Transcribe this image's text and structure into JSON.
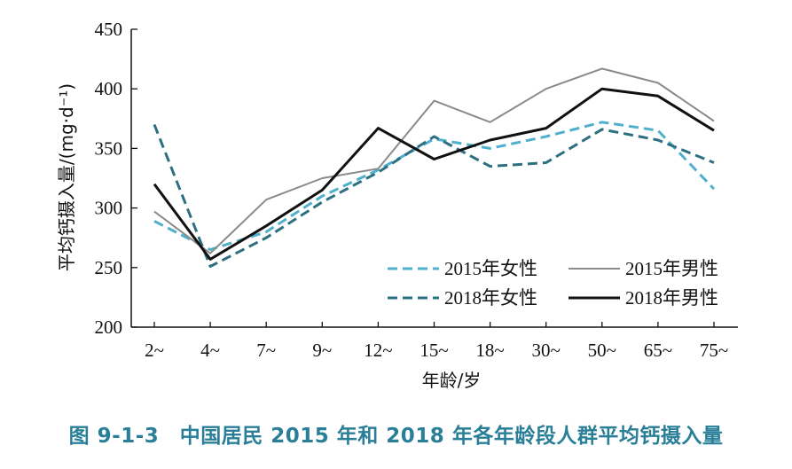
{
  "caption": "图 9-1-3　中国居民 2015 年和 2018 年各年龄段人群平均钙摄入量",
  "chart_data": {
    "type": "line",
    "title": "",
    "xlabel": "年龄/岁",
    "ylabel": "平均钙摄入量/(mg·d⁻¹)",
    "categories": [
      "2~",
      "4~",
      "7~",
      "9~",
      "12~",
      "15~",
      "18~",
      "30~",
      "50~",
      "65~",
      "75~"
    ],
    "ylim": [
      200,
      450
    ],
    "yticks": [
      200,
      250,
      300,
      350,
      400,
      450
    ],
    "grid": false,
    "legend_position": "bottom-right",
    "series": [
      {
        "name": "2015年女性",
        "color": "#4fb0cc",
        "dash": "dashed",
        "values": [
          289,
          265,
          280,
          310,
          332,
          358,
          350,
          360,
          372,
          365,
          316
        ]
      },
      {
        "name": "2015年男性",
        "color": "#8a8a8a",
        "dash": "solid",
        "values": [
          297,
          262,
          307,
          325,
          333,
          390,
          372,
          400,
          417,
          405,
          373
        ]
      },
      {
        "name": "2018年女性",
        "color": "#2c6f80",
        "dash": "dashed",
        "values": [
          370,
          251,
          275,
          305,
          330,
          360,
          335,
          338,
          366,
          357,
          338
        ]
      },
      {
        "name": "2018年男性",
        "color": "#111111",
        "dash": "solid",
        "values": [
          320,
          257,
          285,
          315,
          367,
          341,
          357,
          367,
          400,
          394,
          365
        ]
      }
    ]
  }
}
